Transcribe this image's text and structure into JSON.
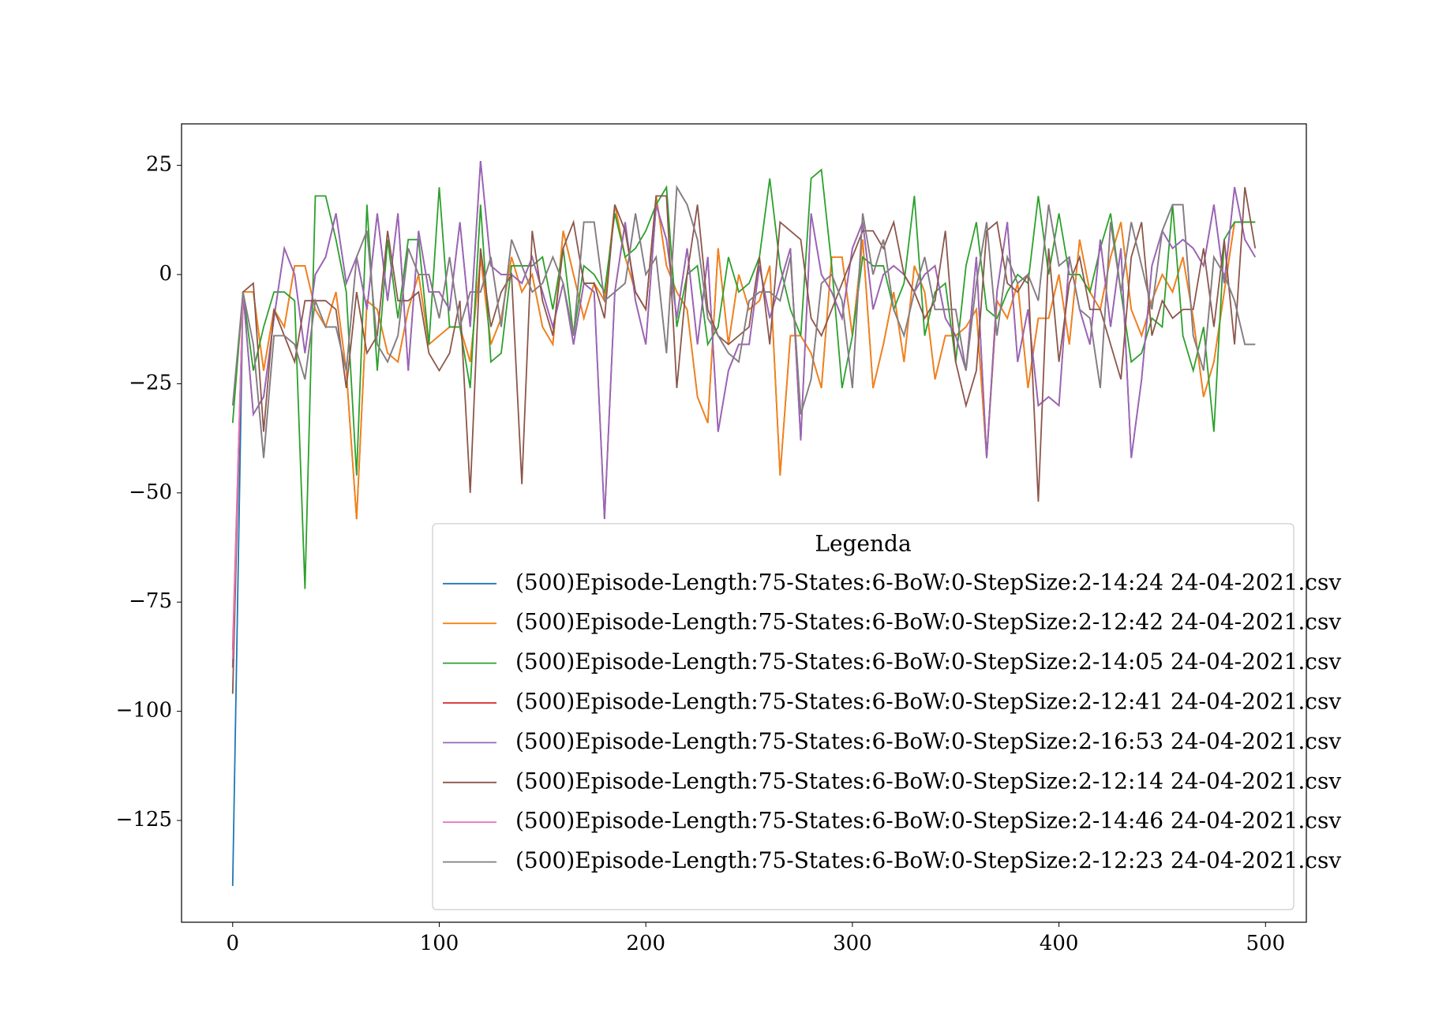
{
  "chart_data": {
    "type": "line",
    "x": [
      0,
      5,
      10,
      15,
      20,
      25,
      30,
      35,
      40,
      45,
      50,
      55,
      60,
      65,
      70,
      75,
      80,
      85,
      90,
      95,
      100,
      105,
      110,
      115,
      120,
      125,
      130,
      135,
      140,
      145,
      150,
      155,
      160,
      165,
      170,
      175,
      180,
      185,
      190,
      195,
      200,
      205,
      210,
      215,
      220,
      225,
      230,
      235,
      240,
      245,
      250,
      255,
      260,
      265,
      270,
      275,
      280,
      285,
      290,
      295,
      300,
      305,
      310,
      315,
      320,
      325,
      330,
      335,
      340,
      345,
      350,
      355,
      360,
      365,
      370,
      375,
      380,
      385,
      390,
      395,
      400,
      405,
      410,
      415,
      420,
      425,
      430,
      435,
      440,
      445,
      450,
      455,
      460,
      465,
      470,
      475,
      480,
      485,
      490,
      495
    ],
    "series": [
      {
        "name": "(500)Episode-Length:75-States:6-BoW:0-StepSize:2-14:24 24-04-2021.csv",
        "color": "#1f77b4",
        "values": [
          -140,
          -4,
          -4,
          -22,
          -8,
          -12,
          2,
          2,
          -8,
          -12,
          -4,
          -22,
          -56,
          -6,
          -8,
          -18,
          -20,
          -8,
          0,
          -16,
          -14,
          -12,
          -12,
          -20,
          4,
          -16,
          -10,
          4,
          -4,
          0,
          -12,
          -16,
          10,
          0,
          -10,
          -2,
          -6,
          16,
          4,
          -4,
          -8,
          18,
          2,
          -4,
          -8,
          -28,
          -34,
          6,
          -16,
          0,
          -8,
          -6,
          2,
          -46,
          -14,
          -14,
          -18,
          -26,
          4,
          4,
          -14,
          8,
          -26,
          -16,
          -4,
          -20,
          2,
          -4,
          -24,
          -14,
          -14,
          -12,
          -8,
          -42,
          -6,
          -10,
          -2,
          -26,
          -10,
          -10,
          0,
          -16,
          8,
          -4,
          -8,
          4,
          12,
          -8,
          -14,
          -6,
          0,
          -4,
          4,
          -10,
          -28,
          -20,
          -4,
          12,
          12,
          12
        ]
      },
      {
        "name": "(500)Episode-Length:75-States:6-BoW:0-StepSize:2-12:42 24-04-2021.csv",
        "color": "#ff7f0e",
        "values": [
          -90,
          -4,
          -4,
          -22,
          -8,
          -12,
          2,
          2,
          -8,
          -12,
          -4,
          -22,
          -56,
          -6,
          -8,
          -18,
          -20,
          -8,
          0,
          -16,
          -14,
          -12,
          -12,
          -20,
          4,
          -16,
          -10,
          4,
          -4,
          0,
          -12,
          -16,
          10,
          0,
          -10,
          -2,
          -6,
          16,
          4,
          -4,
          -8,
          18,
          2,
          -4,
          -8,
          -28,
          -34,
          6,
          -16,
          0,
          -8,
          -6,
          2,
          -46,
          -14,
          -14,
          -18,
          -26,
          4,
          4,
          -14,
          8,
          -26,
          -16,
          -4,
          -20,
          2,
          -4,
          -24,
          -14,
          -14,
          -12,
          -8,
          -42,
          -6,
          -10,
          -2,
          -26,
          -10,
          -10,
          0,
          -16,
          8,
          -4,
          -8,
          4,
          12,
          -8,
          -14,
          -6,
          0,
          -4,
          4,
          -10,
          -28,
          -20,
          -4,
          12,
          12,
          12
        ]
      },
      {
        "name": "(500)Episode-Length:75-States:6-BoW:0-StepSize:2-14:05 24-04-2021.csv",
        "color": "#2ca02c",
        "values": [
          -34,
          -4,
          -22,
          -12,
          -4,
          -4,
          -6,
          -72,
          18,
          18,
          8,
          -4,
          -46,
          16,
          -22,
          8,
          -10,
          8,
          8,
          -16,
          20,
          -12,
          -12,
          -26,
          16,
          -20,
          -18,
          2,
          2,
          2,
          4,
          -8,
          6,
          -14,
          2,
          0,
          -4,
          14,
          4,
          6,
          10,
          16,
          20,
          -12,
          0,
          2,
          -16,
          -12,
          4,
          -4,
          -2,
          4,
          22,
          2,
          -8,
          -14,
          22,
          24,
          2,
          -26,
          -14,
          4,
          2,
          2,
          -8,
          -2,
          18,
          -14,
          -4,
          -2,
          -20,
          2,
          12,
          -8,
          -10,
          -4,
          0,
          -2,
          18,
          0,
          14,
          0,
          0,
          -4,
          6,
          14,
          -4,
          -20,
          -18,
          -10,
          -12,
          16,
          -14,
          -22,
          -12,
          -36,
          8,
          12,
          12,
          12
        ]
      },
      {
        "name": "(500)Episode-Length:75-States:6-BoW:0-StepSize:2-12:41 24-04-2021.csv",
        "color": "#d62728",
        "values": [
          -86,
          -4,
          -32,
          -28,
          -10,
          6,
          0,
          -18,
          0,
          4,
          14,
          -2,
          4,
          -8,
          14,
          -6,
          14,
          -22,
          10,
          -4,
          -4,
          -8,
          12,
          -12,
          26,
          2,
          0,
          0,
          -2,
          4,
          -4,
          -12,
          -2,
          -16,
          -2,
          -4,
          -56,
          -4,
          12,
          -6,
          -16,
          16,
          8,
          -10,
          6,
          -16,
          4,
          -36,
          -22,
          -16,
          -16,
          2,
          -10,
          -2,
          6,
          -38,
          14,
          0,
          -4,
          -10,
          6,
          12,
          -8,
          0,
          2,
          0,
          -4,
          0,
          2,
          -10,
          -14,
          -22,
          4,
          -42,
          -4,
          12,
          -20,
          -8,
          -30,
          -28,
          -30,
          4,
          -8,
          -16,
          8,
          -12,
          6,
          -42,
          -24,
          2,
          10,
          6,
          8,
          6,
          2,
          16,
          -2,
          20,
          8,
          4
        ]
      },
      {
        "name": "(500)Episode-Length:75-States:6-BoW:0-StepSize:2-16:53 24-04-2021.csv",
        "color": "#9467bd",
        "values": [
          -90,
          -4,
          -32,
          -28,
          -10,
          6,
          0,
          -18,
          0,
          4,
          14,
          -2,
          4,
          -8,
          14,
          -6,
          14,
          -22,
          10,
          -4,
          -4,
          -8,
          12,
          -12,
          26,
          2,
          0,
          0,
          -2,
          4,
          -4,
          -12,
          -2,
          -16,
          -2,
          -4,
          -56,
          -4,
          12,
          -6,
          -16,
          16,
          8,
          -10,
          6,
          -16,
          4,
          -36,
          -22,
          -16,
          -16,
          2,
          -10,
          -2,
          6,
          -38,
          14,
          0,
          -4,
          -10,
          6,
          12,
          -8,
          0,
          2,
          0,
          -4,
          0,
          2,
          -10,
          -14,
          -22,
          4,
          -42,
          -4,
          12,
          -20,
          -8,
          -30,
          -28,
          -30,
          4,
          -8,
          -16,
          8,
          -12,
          6,
          -42,
          -24,
          2,
          10,
          6,
          8,
          6,
          2,
          16,
          -2,
          20,
          8,
          4
        ]
      },
      {
        "name": "(500)Episode-Length:75-States:6-BoW:0-StepSize:2-12:14 24-04-2021.csv",
        "color": "#8c564b",
        "values": [
          -96,
          -4,
          -2,
          -36,
          -8,
          -14,
          -20,
          -6,
          -6,
          -6,
          -8,
          -26,
          -4,
          -18,
          -14,
          10,
          -6,
          -6,
          -4,
          -18,
          -22,
          -18,
          -6,
          -50,
          6,
          -12,
          -4,
          0,
          -48,
          10,
          -6,
          -14,
          6,
          12,
          -2,
          -2,
          -10,
          16,
          10,
          -4,
          -8,
          18,
          18,
          -26,
          0,
          16,
          -8,
          -14,
          -16,
          -14,
          -12,
          4,
          -16,
          12,
          10,
          8,
          -10,
          -14,
          -8,
          -2,
          4,
          10,
          10,
          6,
          12,
          0,
          -4,
          -10,
          -6,
          10,
          -20,
          -30,
          -22,
          10,
          12,
          -2,
          -4,
          0,
          -52,
          6,
          -20,
          -2,
          4,
          -8,
          -8,
          -16,
          -24,
          4,
          12,
          -14,
          -6,
          -10,
          -8,
          -8,
          6,
          -12,
          8,
          -16,
          20,
          6
        ]
      },
      {
        "name": "(500)Episode-Length:75-States:6-BoW:0-StepSize:2-14:46 24-04-2021.csv",
        "color": "#e377c2",
        "values": [
          -88,
          -4,
          -16,
          -42,
          -14,
          -14,
          -16,
          -24,
          -6,
          -12,
          -12,
          -22,
          4,
          10,
          -16,
          -20,
          -14,
          6,
          0,
          0,
          -10,
          4,
          -12,
          -4,
          -4,
          4,
          -12,
          8,
          2,
          -4,
          -2,
          4,
          -2,
          -14,
          12,
          12,
          -6,
          -4,
          -2,
          14,
          0,
          4,
          -18,
          20,
          16,
          8,
          -10,
          -14,
          -18,
          -20,
          -6,
          -4,
          -4,
          -6,
          4,
          -32,
          -24,
          -2,
          0,
          -6,
          -26,
          14,
          0,
          8,
          -8,
          -14,
          -4,
          4,
          -8,
          -8,
          -8,
          -22,
          -2,
          12,
          -14,
          4,
          -2,
          0,
          -6,
          16,
          2,
          4,
          -8,
          -10,
          -26,
          12,
          -4,
          12,
          2,
          -8,
          10,
          16,
          16,
          -14,
          -22,
          4,
          0,
          -6,
          -16,
          -16
        ]
      },
      {
        "name": "(500)Episode-Length:75-States:6-BoW:0-StepSize:2-12:23 24-04-2021.csv",
        "color": "#7f7f7f",
        "values": [
          -30,
          -4,
          -16,
          -42,
          -14,
          -14,
          -16,
          -24,
          -6,
          -12,
          -12,
          -22,
          4,
          10,
          -16,
          -20,
          -14,
          6,
          0,
          0,
          -10,
          4,
          -12,
          -4,
          -4,
          4,
          -12,
          8,
          2,
          -4,
          -2,
          4,
          -2,
          -14,
          12,
          12,
          -6,
          -4,
          -2,
          14,
          0,
          4,
          -18,
          20,
          16,
          8,
          -10,
          -14,
          -18,
          -20,
          -6,
          -4,
          -4,
          -6,
          4,
          -32,
          -24,
          -2,
          0,
          -6,
          -26,
          14,
          0,
          8,
          -8,
          -14,
          -4,
          4,
          -8,
          -8,
          -8,
          -22,
          -2,
          12,
          -14,
          4,
          -2,
          0,
          -6,
          16,
          2,
          4,
          -8,
          -10,
          -26,
          12,
          -4,
          12,
          2,
          -8,
          10,
          16,
          16,
          -14,
          -22,
          4,
          0,
          -6,
          -16,
          -16
        ]
      }
    ],
    "xlim": [
      -24.75,
      519.75
    ],
    "ylim": [
      -148.3,
      34.5
    ],
    "xticks": [
      0,
      100,
      200,
      300,
      400,
      500
    ],
    "yticks": [
      {
        "value": -125,
        "label": "−125"
      },
      {
        "value": -100,
        "label": "−100"
      },
      {
        "value": -75,
        "label": "−75"
      },
      {
        "value": -50,
        "label": "−50"
      },
      {
        "value": -25,
        "label": "−25"
      },
      0,
      25
    ],
    "legend_title": "Legenda",
    "legend": "lower right"
  }
}
